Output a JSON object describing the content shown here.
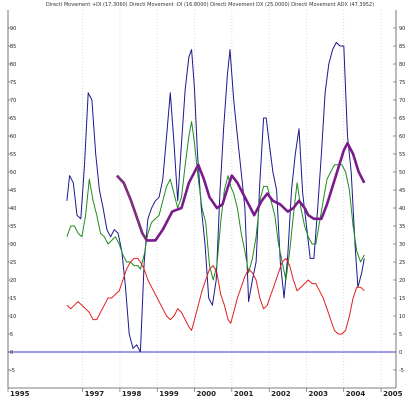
{
  "chart_data": {
    "type": "line",
    "title": "Directi Movement +DI (17.3060) Directi Movement -DI (16.8000) Directi Movement DX (25.0000) Directi Movement ADX (47.3952)",
    "ylim": [
      -10,
      95
    ],
    "y_ticks": [
      -5,
      0,
      5,
      10,
      15,
      20,
      25,
      30,
      35,
      40,
      45,
      50,
      55,
      60,
      65,
      70,
      75,
      80,
      85,
      90
    ],
    "xlim": [
      1995.0,
      2005.4
    ],
    "x_ticks": [
      {
        "x": 1995.0,
        "label": "1995"
      },
      {
        "x": 1997.0,
        "label": "1997"
      },
      {
        "x": 1998.0,
        "label": "1998"
      },
      {
        "x": 1999.0,
        "label": "1999"
      },
      {
        "x": 2000.0,
        "label": "2000"
      },
      {
        "x": 2001.0,
        "label": "2001"
      },
      {
        "x": 2002.0,
        "label": "2002"
      },
      {
        "x": 2003.0,
        "label": "2003"
      },
      {
        "x": 2004.0,
        "label": "2004"
      },
      {
        "x": 2005.0,
        "label": "2005"
      }
    ],
    "grid": "vertical dotted",
    "zero_line": 0,
    "series": [
      {
        "color": "#1a1a8c",
        "points": [
          [
            1996.58,
            42
          ],
          [
            1996.65,
            49
          ],
          [
            1996.75,
            47
          ],
          [
            1996.85,
            38
          ],
          [
            1996.95,
            37
          ],
          [
            1997.05,
            52
          ],
          [
            1997.15,
            72
          ],
          [
            1997.25,
            70
          ],
          [
            1997.35,
            55
          ],
          [
            1997.45,
            45
          ],
          [
            1997.55,
            40
          ],
          [
            1997.65,
            34
          ],
          [
            1997.75,
            32
          ],
          [
            1997.85,
            34
          ],
          [
            1997.95,
            33
          ],
          [
            1998.05,
            28
          ],
          [
            1998.15,
            18
          ],
          [
            1998.25,
            5
          ],
          [
            1998.35,
            1
          ],
          [
            1998.45,
            2
          ],
          [
            1998.55,
            0
          ],
          [
            1998.65,
            25
          ],
          [
            1998.75,
            37
          ],
          [
            1998.85,
            40
          ],
          [
            1998.95,
            42
          ],
          [
            1999.05,
            43
          ],
          [
            1999.15,
            48
          ],
          [
            1999.25,
            60
          ],
          [
            1999.35,
            72
          ],
          [
            1999.45,
            58
          ],
          [
            1999.55,
            42
          ],
          [
            1999.65,
            58
          ],
          [
            1999.75,
            73
          ],
          [
            1999.85,
            82
          ],
          [
            1999.92,
            84
          ],
          [
            2000.0,
            73
          ],
          [
            2000.08,
            55
          ],
          [
            2000.18,
            40
          ],
          [
            2000.28,
            30
          ],
          [
            2000.38,
            15
          ],
          [
            2000.48,
            13
          ],
          [
            2000.58,
            20
          ],
          [
            2000.68,
            44
          ],
          [
            2000.78,
            62
          ],
          [
            2000.88,
            77
          ],
          [
            2000.95,
            84
          ],
          [
            2001.05,
            70
          ],
          [
            2001.15,
            60
          ],
          [
            2001.25,
            50
          ],
          [
            2001.35,
            40
          ],
          [
            2001.45,
            14
          ],
          [
            2001.55,
            20
          ],
          [
            2001.65,
            25
          ],
          [
            2001.75,
            47
          ],
          [
            2001.85,
            65
          ],
          [
            2001.92,
            65
          ],
          [
            2002.0,
            58
          ],
          [
            2002.1,
            50
          ],
          [
            2002.2,
            45
          ],
          [
            2002.3,
            25
          ],
          [
            2002.4,
            15
          ],
          [
            2002.5,
            27
          ],
          [
            2002.6,
            45
          ],
          [
            2002.7,
            55
          ],
          [
            2002.8,
            62
          ],
          [
            2002.9,
            44
          ],
          [
            2003.0,
            35
          ],
          [
            2003.1,
            26
          ],
          [
            2003.2,
            26
          ],
          [
            2003.3,
            40
          ],
          [
            2003.4,
            55
          ],
          [
            2003.5,
            72
          ],
          [
            2003.6,
            80
          ],
          [
            2003.7,
            84
          ],
          [
            2003.8,
            86
          ],
          [
            2003.9,
            85
          ],
          [
            2004.0,
            85
          ],
          [
            2004.1,
            60
          ],
          [
            2004.2,
            50
          ],
          [
            2004.3,
            30
          ],
          [
            2004.38,
            18
          ],
          [
            2004.48,
            22
          ],
          [
            2004.55,
            26
          ]
        ]
      },
      {
        "color": "#1f8c1f",
        "points": [
          [
            1996.58,
            32
          ],
          [
            1996.68,
            35
          ],
          [
            1996.78,
            35
          ],
          [
            1996.88,
            33
          ],
          [
            1996.98,
            32
          ],
          [
            1997.08,
            38
          ],
          [
            1997.18,
            48
          ],
          [
            1997.28,
            42
          ],
          [
            1997.38,
            38
          ],
          [
            1997.48,
            33
          ],
          [
            1997.58,
            32
          ],
          [
            1997.68,
            30
          ],
          [
            1997.78,
            31
          ],
          [
            1997.88,
            32
          ],
          [
            1997.98,
            30
          ],
          [
            1998.08,
            27
          ],
          [
            1998.18,
            25
          ],
          [
            1998.28,
            25
          ],
          [
            1998.38,
            24
          ],
          [
            1998.48,
            24
          ],
          [
            1998.55,
            23
          ],
          [
            1998.65,
            27
          ],
          [
            1998.75,
            33
          ],
          [
            1998.85,
            36
          ],
          [
            1998.95,
            37
          ],
          [
            1999.05,
            38
          ],
          [
            1999.15,
            42
          ],
          [
            1999.25,
            46
          ],
          [
            1999.35,
            48
          ],
          [
            1999.45,
            44
          ],
          [
            1999.55,
            40
          ],
          [
            1999.65,
            43
          ],
          [
            1999.75,
            52
          ],
          [
            1999.85,
            60
          ],
          [
            1999.92,
            64
          ],
          [
            2000.0,
            58
          ],
          [
            2000.1,
            48
          ],
          [
            2000.2,
            40
          ],
          [
            2000.3,
            36
          ],
          [
            2000.4,
            24
          ],
          [
            2000.5,
            20
          ],
          [
            2000.6,
            24
          ],
          [
            2000.7,
            36
          ],
          [
            2000.8,
            45
          ],
          [
            2000.9,
            49
          ],
          [
            2000.97,
            46
          ],
          [
            2001.05,
            44
          ],
          [
            2001.15,
            40
          ],
          [
            2001.25,
            33
          ],
          [
            2001.35,
            28
          ],
          [
            2001.45,
            22
          ],
          [
            2001.55,
            26
          ],
          [
            2001.65,
            32
          ],
          [
            2001.75,
            42
          ],
          [
            2001.85,
            46
          ],
          [
            2001.95,
            46
          ],
          [
            2002.05,
            42
          ],
          [
            2002.15,
            38
          ],
          [
            2002.25,
            30
          ],
          [
            2002.35,
            25
          ],
          [
            2002.45,
            20
          ],
          [
            2002.55,
            28
          ],
          [
            2002.65,
            38
          ],
          [
            2002.75,
            47
          ],
          [
            2002.85,
            40
          ],
          [
            2002.95,
            35
          ],
          [
            2003.05,
            32
          ],
          [
            2003.15,
            30
          ],
          [
            2003.25,
            30
          ],
          [
            2003.35,
            36
          ],
          [
            2003.45,
            42
          ],
          [
            2003.55,
            48
          ],
          [
            2003.65,
            50
          ],
          [
            2003.75,
            52
          ],
          [
            2003.85,
            52
          ],
          [
            2003.95,
            52
          ],
          [
            2004.05,
            50
          ],
          [
            2004.15,
            45
          ],
          [
            2004.25,
            35
          ],
          [
            2004.35,
            28
          ],
          [
            2004.45,
            25
          ],
          [
            2004.55,
            27
          ]
        ]
      },
      {
        "color": "#e02020",
        "points": [
          [
            1996.58,
            13
          ],
          [
            1996.68,
            12
          ],
          [
            1996.78,
            13
          ],
          [
            1996.88,
            14
          ],
          [
            1996.98,
            13
          ],
          [
            1997.08,
            12
          ],
          [
            1997.18,
            11
          ],
          [
            1997.28,
            9
          ],
          [
            1997.38,
            9
          ],
          [
            1997.48,
            11
          ],
          [
            1997.58,
            13
          ],
          [
            1997.68,
            15
          ],
          [
            1997.78,
            15
          ],
          [
            1997.88,
            16
          ],
          [
            1997.98,
            17
          ],
          [
            1998.08,
            20
          ],
          [
            1998.18,
            23
          ],
          [
            1998.28,
            25
          ],
          [
            1998.38,
            26
          ],
          [
            1998.48,
            26
          ],
          [
            1998.55,
            25
          ],
          [
            1998.65,
            23
          ],
          [
            1998.75,
            20
          ],
          [
            1998.85,
            18
          ],
          [
            1998.95,
            16
          ],
          [
            1999.05,
            14
          ],
          [
            1999.15,
            12
          ],
          [
            1999.25,
            10
          ],
          [
            1999.35,
            9
          ],
          [
            1999.45,
            10
          ],
          [
            1999.55,
            12
          ],
          [
            1999.65,
            11
          ],
          [
            1999.75,
            9
          ],
          [
            1999.85,
            7
          ],
          [
            1999.92,
            6
          ],
          [
            2000.0,
            9
          ],
          [
            2000.1,
            13
          ],
          [
            2000.2,
            17
          ],
          [
            2000.3,
            20
          ],
          [
            2000.4,
            23
          ],
          [
            2000.5,
            24
          ],
          [
            2000.6,
            22
          ],
          [
            2000.7,
            16
          ],
          [
            2000.8,
            13
          ],
          [
            2000.9,
            9
          ],
          [
            2000.97,
            8
          ],
          [
            2001.05,
            11
          ],
          [
            2001.15,
            15
          ],
          [
            2001.25,
            18
          ],
          [
            2001.35,
            21
          ],
          [
            2001.45,
            23
          ],
          [
            2001.55,
            22
          ],
          [
            2001.65,
            20
          ],
          [
            2001.75,
            15
          ],
          [
            2001.85,
            12
          ],
          [
            2001.95,
            13
          ],
          [
            2002.05,
            16
          ],
          [
            2002.15,
            19
          ],
          [
            2002.25,
            22
          ],
          [
            2002.35,
            25
          ],
          [
            2002.45,
            26
          ],
          [
            2002.55,
            24
          ],
          [
            2002.65,
            20
          ],
          [
            2002.75,
            17
          ],
          [
            2002.85,
            18
          ],
          [
            2002.95,
            19
          ],
          [
            2003.05,
            20
          ],
          [
            2003.15,
            19
          ],
          [
            2003.25,
            19
          ],
          [
            2003.35,
            17
          ],
          [
            2003.45,
            15
          ],
          [
            2003.55,
            12
          ],
          [
            2003.65,
            9
          ],
          [
            2003.75,
            6
          ],
          [
            2003.85,
            5
          ],
          [
            2003.95,
            5
          ],
          [
            2004.05,
            6
          ],
          [
            2004.15,
            10
          ],
          [
            2004.25,
            15
          ],
          [
            2004.35,
            18
          ],
          [
            2004.45,
            18
          ],
          [
            2004.55,
            17
          ]
        ]
      },
      {
        "color": "#7a1a8c",
        "points": [
          [
            1997.92,
            49
          ],
          [
            1998.1,
            47
          ],
          [
            1998.3,
            42
          ],
          [
            1998.5,
            36
          ],
          [
            1998.6,
            33
          ],
          [
            1998.72,
            31
          ],
          [
            1998.95,
            31
          ],
          [
            1999.15,
            34
          ],
          [
            1999.4,
            39
          ],
          [
            1999.65,
            40
          ],
          [
            1999.85,
            47
          ],
          [
            2000.0,
            50
          ],
          [
            2000.1,
            52
          ],
          [
            2000.25,
            48
          ],
          [
            2000.4,
            43
          ],
          [
            2000.6,
            40
          ],
          [
            2000.75,
            41
          ],
          [
            2000.9,
            46
          ],
          [
            2001.0,
            49
          ],
          [
            2001.15,
            47
          ],
          [
            2001.3,
            44
          ],
          [
            2001.45,
            41
          ],
          [
            2001.6,
            38
          ],
          [
            2001.8,
            42
          ],
          [
            2001.95,
            44
          ],
          [
            2002.1,
            42
          ],
          [
            2002.3,
            41
          ],
          [
            2002.5,
            39
          ],
          [
            2002.65,
            40
          ],
          [
            2002.8,
            42
          ],
          [
            2002.95,
            40
          ],
          [
            2003.05,
            38
          ],
          [
            2003.2,
            37
          ],
          [
            2003.4,
            37
          ],
          [
            2003.55,
            41
          ],
          [
            2003.7,
            46
          ],
          [
            2003.85,
            51
          ],
          [
            2004.0,
            56
          ],
          [
            2004.1,
            58
          ],
          [
            2004.25,
            55
          ],
          [
            2004.4,
            50
          ],
          [
            2004.55,
            47
          ]
        ]
      }
    ]
  }
}
